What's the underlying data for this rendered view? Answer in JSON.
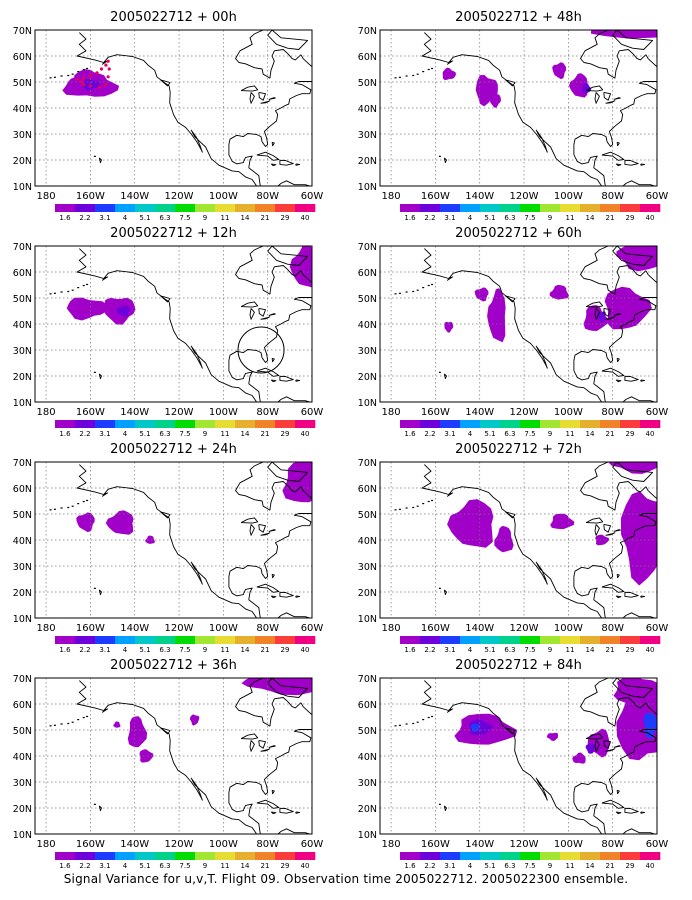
{
  "caption": "Signal Variance for u,v,T. Flight 09. Observation time 2005022712. 2005022300 ensemble.",
  "lat_labels": [
    "70N",
    "60N",
    "50N",
    "40N",
    "30N",
    "20N",
    "10N"
  ],
  "lon_labels": [
    "180",
    "160W",
    "140W",
    "120W",
    "100W",
    "80W",
    "60W"
  ],
  "colorbar": {
    "labels": [
      "1.6",
      "2.2",
      "3.1",
      "4",
      "5.1",
      "6.3",
      "7.5",
      "9",
      "11",
      "14",
      "21",
      "29",
      "40"
    ],
    "colors": [
      "#a000c8",
      "#6e00dc",
      "#1e3cff",
      "#00a0ff",
      "#00c8c8",
      "#00d28c",
      "#00dc00",
      "#a0e632",
      "#e6dc32",
      "#e6af2d",
      "#f08228",
      "#fa3c3c",
      "#f00082"
    ]
  },
  "panels": [
    {
      "title": "2005022712 + 00h"
    },
    {
      "title": "2005022712 + 48h"
    },
    {
      "title": "2005022712 + 12h"
    },
    {
      "title": "2005022712 + 60h"
    },
    {
      "title": "2005022712 + 24h"
    },
    {
      "title": "2005022712 + 72h"
    },
    {
      "title": "2005022712 + 36h"
    },
    {
      "title": "2005022712 + 84h"
    }
  ]
}
